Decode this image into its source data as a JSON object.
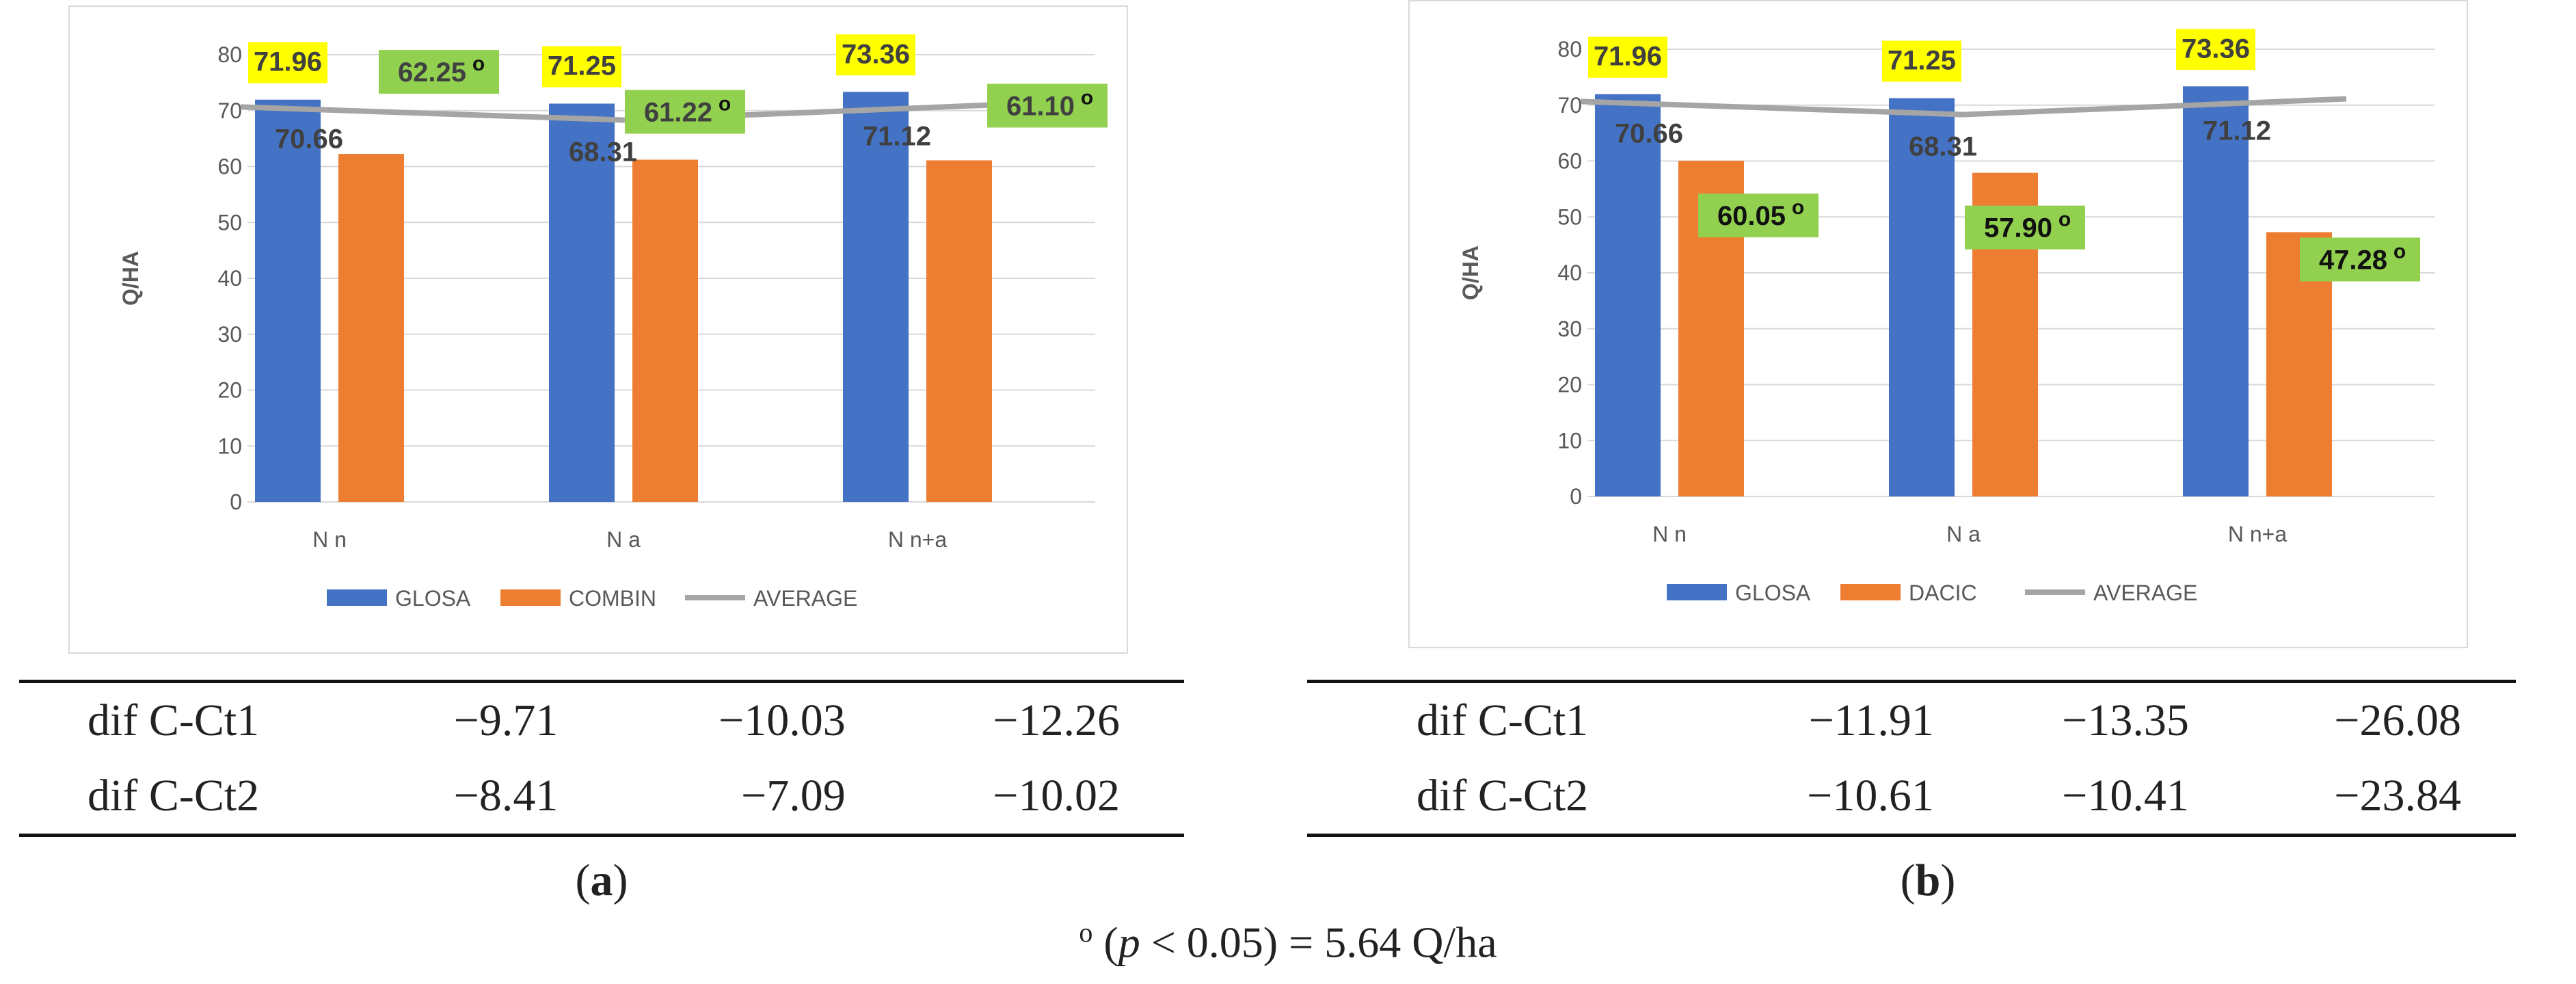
{
  "chart_data": [
    {
      "type": "bar",
      "panel": "a",
      "title": "",
      "xlabel": "",
      "ylabel": "Q/HA",
      "ylim": [
        0,
        80
      ],
      "yticks": [
        0,
        10,
        20,
        30,
        40,
        50,
        60,
        70,
        80
      ],
      "categories": [
        "N n",
        "N a",
        "N n+a"
      ],
      "series": [
        {
          "name": "GLOSA",
          "kind": "bar",
          "color": "#4472c4",
          "values": [
            71.96,
            71.25,
            73.36
          ],
          "labels": [
            "71.96",
            "71.25",
            "73.36"
          ]
        },
        {
          "name": "COMBIN",
          "kind": "bar",
          "color": "#ed7d31",
          "values": [
            62.25,
            61.22,
            61.1
          ],
          "labels": [
            "62.25",
            "61.22",
            "61.10"
          ],
          "label_marker": "o"
        },
        {
          "name": "AVERAGE",
          "kind": "line",
          "color": "#a5a5a5",
          "values": [
            70.66,
            68.31,
            71.12
          ],
          "labels": [
            "70.66",
            "68.31",
            "71.12"
          ]
        }
      ],
      "legend_position": "bottom",
      "grid": true
    },
    {
      "type": "bar",
      "panel": "b",
      "title": "",
      "xlabel": "",
      "ylabel": "Q/HA",
      "ylim": [
        0,
        80
      ],
      "yticks": [
        0,
        10,
        20,
        30,
        40,
        50,
        60,
        70,
        80
      ],
      "categories": [
        "N n",
        "N a",
        "N n+a"
      ],
      "series": [
        {
          "name": "GLOSA",
          "kind": "bar",
          "color": "#4472c4",
          "values": [
            71.96,
            71.25,
            73.36
          ],
          "labels": [
            "71.96",
            "71.25",
            "73.36"
          ]
        },
        {
          "name": "DACIC",
          "kind": "bar",
          "color": "#ed7d31",
          "values": [
            60.05,
            57.9,
            47.28
          ],
          "labels": [
            "60.05",
            "57.90",
            "47.28"
          ],
          "label_marker": "o"
        },
        {
          "name": "AVERAGE",
          "kind": "line",
          "color": "#a5a5a5",
          "values": [
            70.66,
            68.31,
            71.12
          ],
          "labels": [
            "70.66",
            "68.31",
            "71.12"
          ]
        }
      ],
      "legend_position": "bottom",
      "grid": true
    }
  ],
  "tables": {
    "a": {
      "rows": [
        {
          "label": "dif C-Ct1",
          "values": [
            "−9.71",
            "−10.03",
            "−12.26"
          ]
        },
        {
          "label": "dif C-Ct2",
          "values": [
            "−8.41",
            "−7.09",
            "−10.02"
          ]
        }
      ],
      "caption": {
        "open": "(",
        "letter": "a",
        "close": ")"
      }
    },
    "b": {
      "rows": [
        {
          "label": "dif C-Ct1",
          "values": [
            "−11.91",
            "−13.35",
            "−26.08"
          ]
        },
        {
          "label": "dif C-Ct2",
          "values": [
            "−10.61",
            "−10.41",
            "−23.84"
          ]
        }
      ],
      "caption": {
        "open": "(",
        "letter": "b",
        "close": ")"
      }
    }
  },
  "footnote": {
    "marker": "o",
    "open": " (",
    "p": "p",
    "rest": " < 0.05) = 5.64 Q/ha"
  },
  "colors": {
    "highlight_yellow": "#ffff00",
    "highlight_green": "#92d050",
    "grid": "#d9d9d9",
    "axis_text": "#595959"
  }
}
